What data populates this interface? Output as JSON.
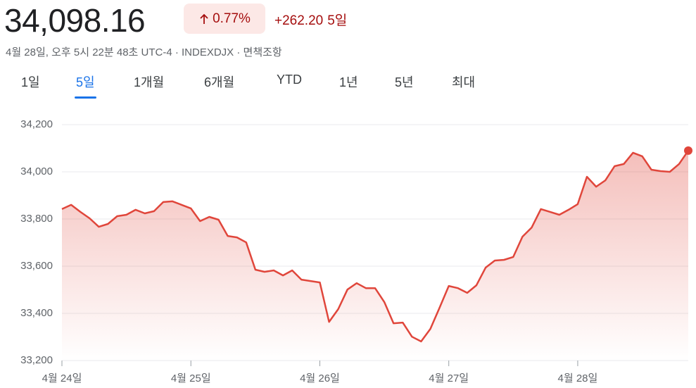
{
  "header": {
    "price": "34,098.16",
    "change_percent": "0.77%",
    "change": "+262.20",
    "period": "5일",
    "subtitle": "4월 28일, 오후 5시 22분 48초 UTC-4 · INDEXDJX · 면책조항"
  },
  "tabs": {
    "items": [
      "1일",
      "5일",
      "1개월",
      "6개월",
      "YTD",
      "1년",
      "5년",
      "최대"
    ],
    "selected": 1
  },
  "chart_data": {
    "type": "area",
    "color": "#e0463b",
    "values": [
      33842,
      33860,
      33830,
      33803,
      33767,
      33779,
      33812,
      33818,
      33839,
      33824,
      33833,
      33872,
      33875,
      33860,
      33845,
      33791,
      33809,
      33797,
      33728,
      33722,
      33701,
      33585,
      33576,
      33582,
      33561,
      33582,
      33543,
      33537,
      33531,
      33364,
      33418,
      33501,
      33528,
      33507,
      33507,
      33448,
      33358,
      33361,
      33301,
      33281,
      33334,
      33424,
      33516,
      33507,
      33487,
      33519,
      33594,
      33624,
      33627,
      33639,
      33725,
      33764,
      33842,
      33830,
      33818,
      33839,
      33863,
      33979,
      33937,
      33964,
      34024,
      34033,
      34081,
      34066,
      34009,
      34003,
      34000,
      34033,
      34090
    ],
    "xlim": [
      0,
      68
    ],
    "xticks": [
      {
        "value": 0,
        "label": "4월 24일"
      },
      {
        "value": 14,
        "label": "4월 25일"
      },
      {
        "value": 28,
        "label": "4월 26일"
      },
      {
        "value": 42,
        "label": "4월 27일"
      },
      {
        "value": 56,
        "label": "4월 28일"
      }
    ],
    "ylim": [
      33200,
      34200
    ],
    "yticks": [
      {
        "value": 33200,
        "label": "33,200"
      },
      {
        "value": 33400,
        "label": "33,400"
      },
      {
        "value": 33600,
        "label": "33,600"
      },
      {
        "value": 33800,
        "label": "33,800"
      },
      {
        "value": 34000,
        "label": "34,000"
      },
      {
        "value": 34200,
        "label": "34,200"
      }
    ],
    "grid": true
  }
}
